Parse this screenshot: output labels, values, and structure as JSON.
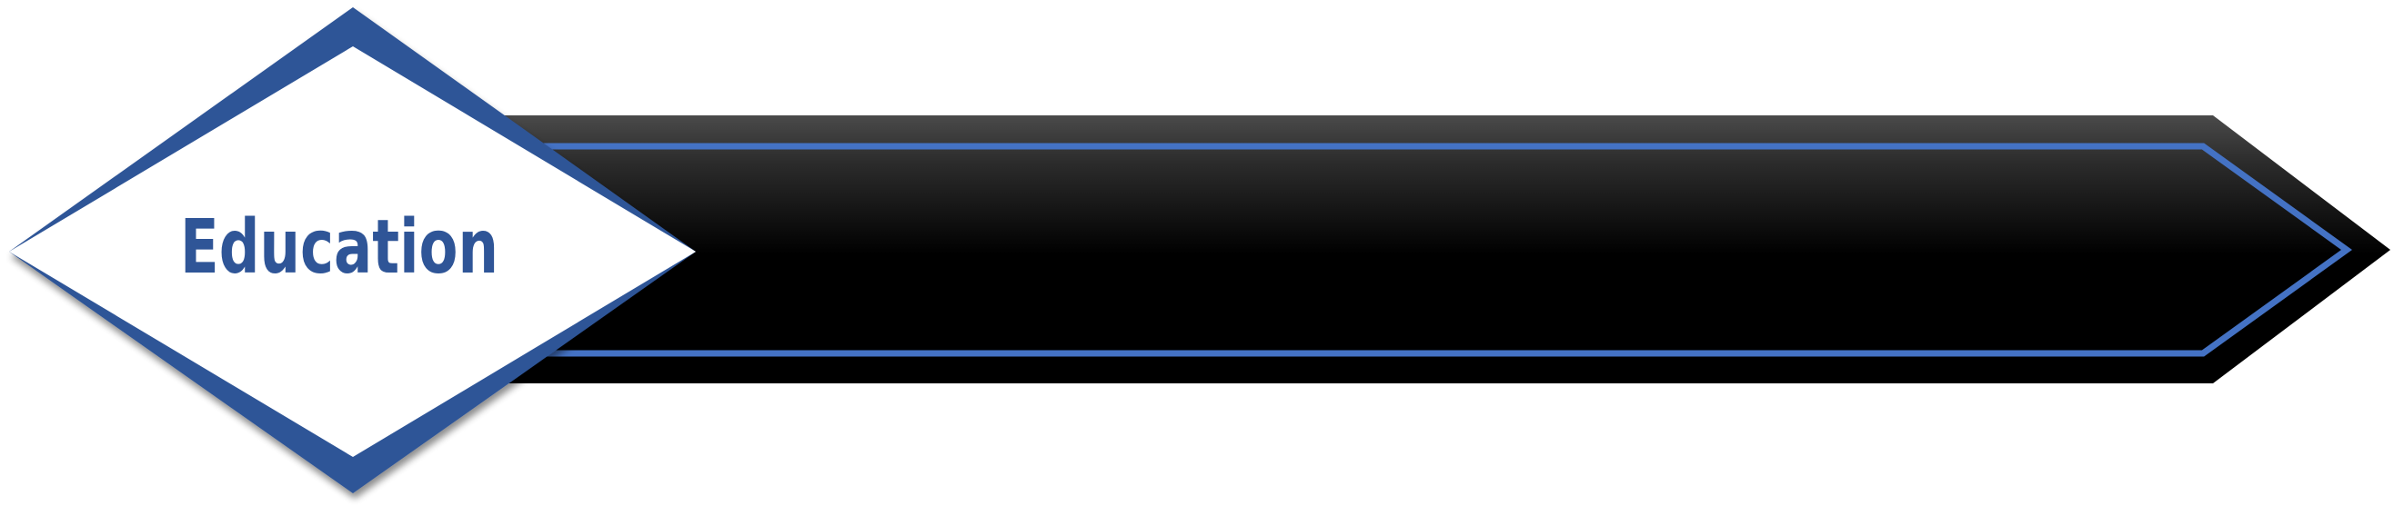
{
  "banner": {
    "label": "Education",
    "colors": {
      "diamond_outer": "#2f5597",
      "diamond_inner": "#ffffff",
      "bar_fill_top": "#404040",
      "bar_fill_bottom": "#000000",
      "bar_stripe": "#4472c4",
      "label_text": "#2f5597"
    }
  }
}
